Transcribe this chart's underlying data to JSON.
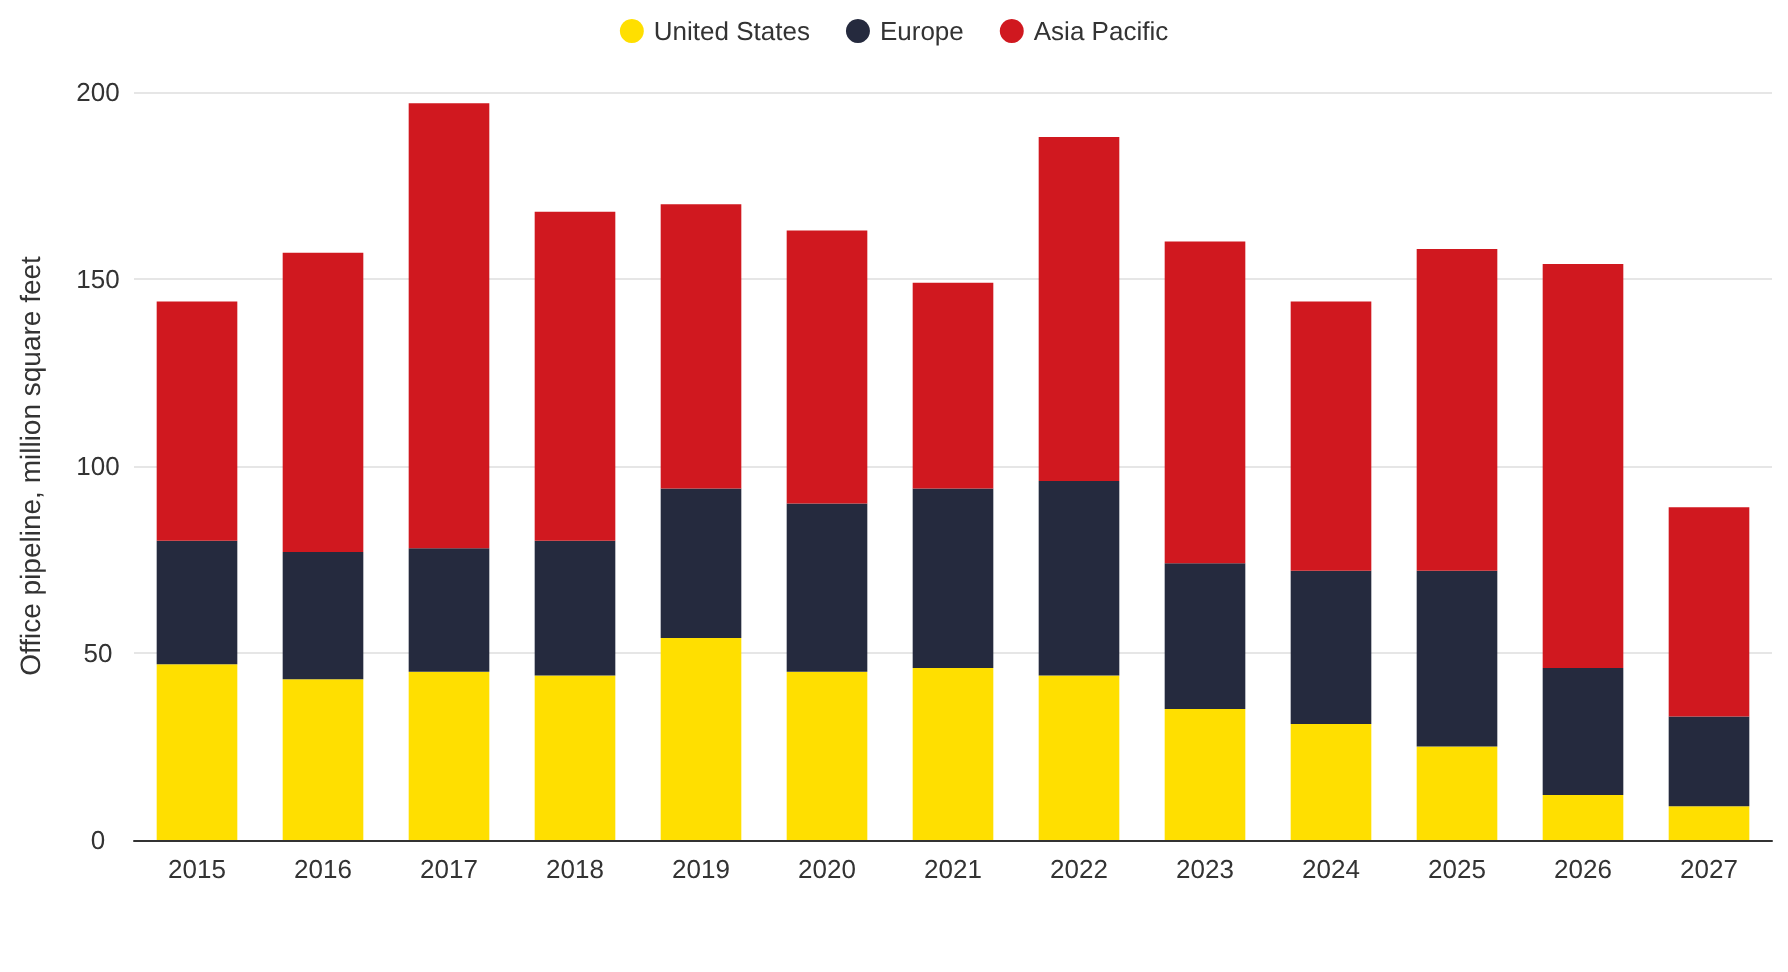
{
  "chart_data": {
    "type": "bar",
    "stacked": true,
    "ylabel": "Office pipeline, million square feet",
    "categories": [
      "2015",
      "2016",
      "2017",
      "2018",
      "2019",
      "2020",
      "2021",
      "2022",
      "2023",
      "2024",
      "2025",
      "2026",
      "2027"
    ],
    "series": [
      {
        "name": "United States",
        "color": "#ffdf00",
        "values": [
          47,
          43,
          45,
          44,
          54,
          45,
          46,
          44,
          35,
          31,
          25,
          12,
          9
        ]
      },
      {
        "name": "Europe",
        "color": "#252a3e",
        "values": [
          33,
          34,
          33,
          36,
          40,
          45,
          48,
          52,
          39,
          41,
          47,
          34,
          24
        ]
      },
      {
        "name": "Asia Pacific",
        "color": "#d0181f",
        "values": [
          64,
          80,
          119,
          88,
          76,
          73,
          55,
          92,
          86,
          72,
          86,
          108,
          56
        ]
      }
    ],
    "ylim": [
      0,
      200
    ],
    "yticks": [
      0,
      50,
      100,
      150,
      200
    ],
    "grid": "y",
    "legend": "top"
  }
}
